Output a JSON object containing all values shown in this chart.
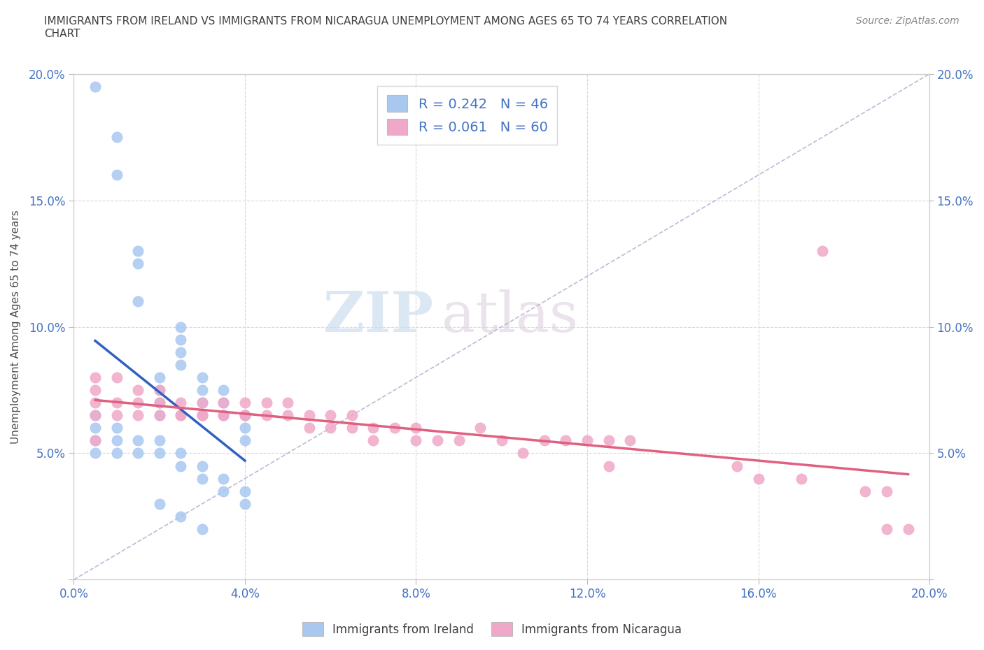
{
  "title": "IMMIGRANTS FROM IRELAND VS IMMIGRANTS FROM NICARAGUA UNEMPLOYMENT AMONG AGES 65 TO 74 YEARS CORRELATION\nCHART",
  "source_text": "Source: ZipAtlas.com",
  "ylabel": "Unemployment Among Ages 65 to 74 years",
  "xlim": [
    0.0,
    0.2
  ],
  "ylim": [
    0.0,
    0.2
  ],
  "xticks": [
    0.0,
    0.04,
    0.08,
    0.12,
    0.16,
    0.2
  ],
  "yticks": [
    0.0,
    0.05,
    0.1,
    0.15,
    0.2
  ],
  "xticklabels": [
    "0.0%",
    "4.0%",
    "8.0%",
    "12.0%",
    "16.0%",
    "20.0%"
  ],
  "yticklabels": [
    "",
    "5.0%",
    "10.0%",
    "15.0%",
    "20.0%"
  ],
  "ireland_color": "#a8c8f0",
  "nicaragua_color": "#f0a8c8",
  "ireland_R": 0.242,
  "ireland_N": 46,
  "nicaragua_R": 0.061,
  "nicaragua_N": 60,
  "legend_label_ireland": "Immigrants from Ireland",
  "legend_label_nicaragua": "Immigrants from Nicaragua",
  "watermark_zip": "ZIP",
  "watermark_atlas": "atlas",
  "ireland_scatter_x": [
    0.005,
    0.01,
    0.01,
    0.015,
    0.015,
    0.015,
    0.02,
    0.02,
    0.02,
    0.02,
    0.025,
    0.025,
    0.025,
    0.025,
    0.03,
    0.03,
    0.03,
    0.03,
    0.035,
    0.035,
    0.035,
    0.04,
    0.04,
    0.04,
    0.005,
    0.005,
    0.005,
    0.005,
    0.01,
    0.01,
    0.01,
    0.015,
    0.015,
    0.02,
    0.02,
    0.025,
    0.025,
    0.03,
    0.03,
    0.035,
    0.035,
    0.04,
    0.04,
    0.02,
    0.025,
    0.03
  ],
  "ireland_scatter_y": [
    0.195,
    0.175,
    0.16,
    0.13,
    0.125,
    0.11,
    0.08,
    0.075,
    0.07,
    0.065,
    0.085,
    0.09,
    0.095,
    0.1,
    0.08,
    0.075,
    0.07,
    0.065,
    0.075,
    0.07,
    0.065,
    0.065,
    0.06,
    0.055,
    0.065,
    0.06,
    0.055,
    0.05,
    0.06,
    0.055,
    0.05,
    0.055,
    0.05,
    0.055,
    0.05,
    0.05,
    0.045,
    0.045,
    0.04,
    0.04,
    0.035,
    0.035,
    0.03,
    0.03,
    0.025,
    0.02
  ],
  "nicaragua_scatter_x": [
    0.005,
    0.005,
    0.005,
    0.005,
    0.01,
    0.01,
    0.01,
    0.015,
    0.015,
    0.015,
    0.02,
    0.02,
    0.02,
    0.025,
    0.025,
    0.025,
    0.03,
    0.03,
    0.03,
    0.035,
    0.035,
    0.035,
    0.04,
    0.04,
    0.04,
    0.045,
    0.045,
    0.05,
    0.05,
    0.055,
    0.055,
    0.06,
    0.06,
    0.065,
    0.065,
    0.07,
    0.07,
    0.075,
    0.08,
    0.08,
    0.085,
    0.09,
    0.095,
    0.1,
    0.105,
    0.11,
    0.115,
    0.12,
    0.125,
    0.13,
    0.155,
    0.16,
    0.17,
    0.175,
    0.185,
    0.19,
    0.195,
    0.005,
    0.125,
    0.19
  ],
  "nicaragua_scatter_y": [
    0.065,
    0.07,
    0.075,
    0.08,
    0.065,
    0.07,
    0.08,
    0.065,
    0.07,
    0.075,
    0.065,
    0.07,
    0.075,
    0.065,
    0.07,
    0.065,
    0.065,
    0.07,
    0.065,
    0.065,
    0.07,
    0.065,
    0.065,
    0.07,
    0.065,
    0.065,
    0.07,
    0.065,
    0.07,
    0.06,
    0.065,
    0.06,
    0.065,
    0.06,
    0.065,
    0.06,
    0.055,
    0.06,
    0.055,
    0.06,
    0.055,
    0.055,
    0.06,
    0.055,
    0.05,
    0.055,
    0.055,
    0.055,
    0.055,
    0.055,
    0.045,
    0.04,
    0.04,
    0.13,
    0.035,
    0.035,
    0.02,
    0.055,
    0.045,
    0.02
  ],
  "background_color": "#ffffff",
  "grid_color": "#d8d8d8",
  "tick_color": "#4472c4",
  "title_color": "#404040",
  "ireland_line_color": "#3060c0",
  "nicaragua_line_color": "#e06080",
  "trendline_dash_color": "#aaaacc"
}
